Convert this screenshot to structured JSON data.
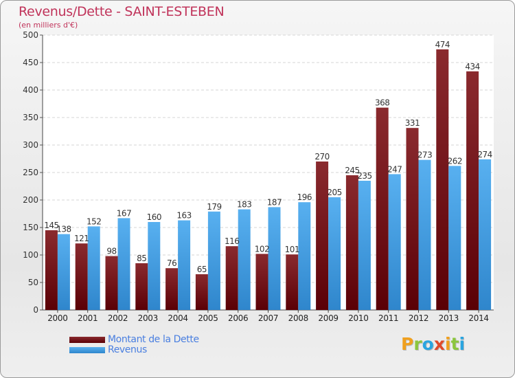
{
  "chart_data": {
    "type": "bar",
    "title": "Revenus/Dette - SAINT-ESTEBEN",
    "subtitle": "(en milliers d'€)",
    "categories": [
      "2000",
      "2001",
      "2002",
      "2003",
      "2004",
      "2005",
      "2006",
      "2007",
      "2008",
      "2009",
      "2010",
      "2011",
      "2012",
      "2013",
      "2014"
    ],
    "series": [
      {
        "name": "Montant de la Dette",
        "color": "#7a1a1f",
        "values": [
          145,
          121,
          98,
          85,
          76,
          65,
          116,
          102,
          101,
          270,
          245,
          368,
          331,
          474,
          434
        ]
      },
      {
        "name": "Revenus",
        "color": "#4aa3e8",
        "values": [
          138,
          152,
          167,
          160,
          163,
          179,
          183,
          187,
          196,
          205,
          235,
          247,
          273,
          262,
          274
        ]
      }
    ],
    "ylim": [
      0,
      500
    ],
    "yticks": [
      0,
      50,
      100,
      150,
      200,
      250,
      300,
      350,
      400,
      450,
      500
    ],
    "grid": true,
    "legend_position": "bottom-left"
  },
  "brand": {
    "letters": [
      "P",
      "r",
      "o",
      "x",
      "i",
      "t",
      "i"
    ],
    "colors": [
      "#f0a01e",
      "#8cc63e",
      "#2aa5e0",
      "#e04a2a",
      "#f0a01e",
      "#8cc63e",
      "#2aa5e0"
    ]
  }
}
